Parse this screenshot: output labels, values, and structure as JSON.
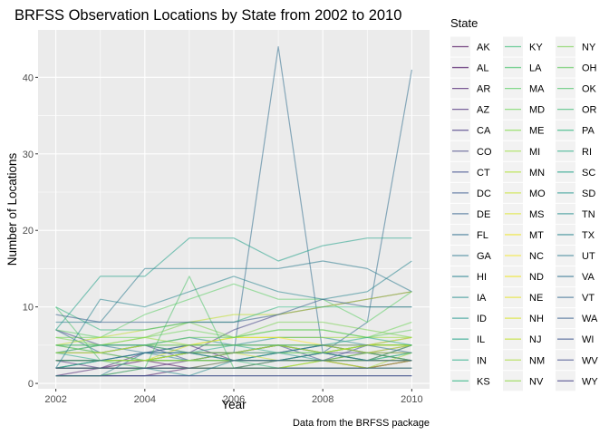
{
  "chart_data": {
    "type": "line",
    "title": "BRFSS Observation Locations by State from 2002 to 2010",
    "xlabel": "Year",
    "ylabel": "Number of Locations",
    "caption": "Data from the BRFSS package",
    "legend_title": "State",
    "legend_position": "right",
    "grid": true,
    "xlim": [
      2001.6,
      2010.4
    ],
    "ylim": [
      -0.7,
      46.2
    ],
    "x": [
      2002,
      2003,
      2004,
      2005,
      2006,
      2007,
      2008,
      2009,
      2010
    ],
    "x_ticks": [
      2002,
      2004,
      2006,
      2008,
      2010
    ],
    "y_ticks": [
      0,
      10,
      20,
      30,
      40
    ],
    "series": [
      {
        "name": "AK",
        "color": "#440154",
        "values": [
          2,
          2,
          3,
          2,
          2,
          3,
          3,
          2,
          3
        ]
      },
      {
        "name": "AL",
        "color": "#470E61",
        "values": [
          1,
          1,
          1,
          2,
          2,
          2,
          2,
          2,
          3
        ]
      },
      {
        "name": "AR",
        "color": "#481B6D",
        "values": [
          1,
          2,
          2,
          3,
          3,
          3,
          4,
          3,
          5
        ]
      },
      {
        "name": "AZ",
        "color": "#472777",
        "values": [
          3,
          2,
          4,
          5,
          3,
          4,
          5,
          4,
          3
        ]
      },
      {
        "name": "CA",
        "color": "#45347F",
        "values": [
          2,
          3,
          3,
          4,
          4,
          5,
          4,
          4,
          4
        ]
      },
      {
        "name": "CO",
        "color": "#414185",
        "values": [
          7,
          5,
          5,
          4,
          7,
          9,
          10,
          11,
          12
        ]
      },
      {
        "name": "CT",
        "color": "#3C4C8A",
        "values": [
          4,
          4,
          5,
          3,
          4,
          5,
          3,
          5,
          5
        ]
      },
      {
        "name": "DC",
        "color": "#38588C",
        "values": [
          1,
          1,
          1,
          1,
          1,
          1,
          1,
          1,
          1
        ]
      },
      {
        "name": "DE",
        "color": "#33638D",
        "values": [
          3,
          3,
          3,
          3,
          3,
          3,
          3,
          3,
          3
        ]
      },
      {
        "name": "FL",
        "color": "#2F6D8E",
        "values": [
          7,
          4,
          3,
          3,
          4,
          44,
          4,
          8,
          41
        ]
      },
      {
        "name": "GA",
        "color": "#2A788E",
        "values": [
          4,
          5,
          4,
          5,
          5,
          5,
          5,
          4,
          5
        ]
      },
      {
        "name": "HI",
        "color": "#26828E",
        "values": [
          1,
          1,
          4,
          3,
          4,
          5,
          4,
          5,
          5
        ]
      },
      {
        "name": "IA",
        "color": "#238C8D",
        "values": [
          5,
          4,
          5,
          6,
          5,
          6,
          6,
          5,
          6
        ]
      },
      {
        "name": "ID",
        "color": "#1F968B",
        "values": [
          2,
          3,
          3,
          3,
          3,
          4,
          3,
          3,
          4
        ]
      },
      {
        "name": "IL",
        "color": "#1FA188",
        "values": [
          3,
          3,
          3,
          4,
          3,
          4,
          5,
          4,
          3
        ]
      },
      {
        "name": "IN",
        "color": "#22AB85",
        "values": [
          4,
          3,
          4,
          4,
          5,
          4,
          4,
          5,
          5
        ]
      },
      {
        "name": "KS",
        "color": "#2BB47F",
        "values": [
          2,
          3,
          3,
          3,
          3,
          3,
          4,
          3,
          3
        ]
      },
      {
        "name": "KY",
        "color": "#38BE76",
        "values": [
          3,
          3,
          3,
          4,
          3,
          2,
          3,
          3,
          3
        ]
      },
      {
        "name": "LA",
        "color": "#48C56D",
        "values": [
          4,
          4,
          5,
          4,
          4,
          5,
          4,
          5,
          5
        ]
      },
      {
        "name": "MA",
        "color": "#5ACE62",
        "values": [
          7,
          6,
          9,
          11,
          13,
          11,
          11,
          8,
          12
        ]
      },
      {
        "name": "MD",
        "color": "#6DD557",
        "values": [
          6,
          6,
          6,
          7,
          6,
          7,
          7,
          6,
          8
        ]
      },
      {
        "name": "ME",
        "color": "#82DB4A",
        "values": [
          5,
          4,
          3,
          4,
          4,
          4,
          4,
          5,
          5
        ]
      },
      {
        "name": "MI",
        "color": "#9ADE3C",
        "values": [
          5,
          5,
          6,
          5,
          6,
          6,
          6,
          6,
          6
        ]
      },
      {
        "name": "MN",
        "color": "#B0E133",
        "values": [
          3,
          3,
          3,
          3,
          3,
          3,
          3,
          4,
          4
        ]
      },
      {
        "name": "MO",
        "color": "#C7E32B",
        "values": [
          3,
          3,
          3,
          3,
          4,
          3,
          3,
          3,
          3
        ]
      },
      {
        "name": "MS",
        "color": "#DEE527",
        "values": [
          2,
          2,
          2,
          2,
          2,
          2,
          3,
          2,
          3
        ]
      },
      {
        "name": "MT",
        "color": "#EFE620",
        "values": [
          2,
          2,
          2,
          2,
          3,
          3,
          3,
          3,
          3
        ]
      },
      {
        "name": "NC",
        "color": "#F5E71F",
        "values": [
          4,
          4,
          5,
          5,
          6,
          6,
          5,
          5,
          6
        ]
      },
      {
        "name": "ND",
        "color": "#F0E41E",
        "values": [
          3,
          3,
          3,
          3,
          3,
          3,
          3,
          4,
          3
        ]
      },
      {
        "name": "NE",
        "color": "#E4E319",
        "values": [
          3,
          3,
          3,
          4,
          4,
          5,
          5,
          4,
          5
        ]
      },
      {
        "name": "NH",
        "color": "#D8E219",
        "values": [
          3,
          3,
          3,
          5,
          5,
          5,
          4,
          5,
          5
        ]
      },
      {
        "name": "NJ",
        "color": "#BEDF26",
        "values": [
          5,
          6,
          7,
          8,
          9,
          9,
          10,
          11,
          12
        ]
      },
      {
        "name": "NM",
        "color": "#A6DB35",
        "values": [
          1,
          1,
          2,
          2,
          2,
          2,
          3,
          2,
          4
        ]
      },
      {
        "name": "NV",
        "color": "#8FD744",
        "values": [
          2,
          2,
          2,
          2,
          2,
          2,
          2,
          2,
          2
        ]
      },
      {
        "name": "NY",
        "color": "#79D151",
        "values": [
          6,
          5,
          6,
          8,
          6,
          8,
          8,
          7,
          6
        ]
      },
      {
        "name": "OH",
        "color": "#63CB5F",
        "values": [
          4,
          5,
          5,
          6,
          6,
          7,
          7,
          6,
          7
        ]
      },
      {
        "name": "OK",
        "color": "#4FC369",
        "values": [
          10,
          3,
          2,
          14,
          2,
          3,
          3,
          3,
          5
        ]
      },
      {
        "name": "OR",
        "color": "#3DBC74",
        "values": [
          3,
          3,
          3,
          3,
          3,
          3,
          4,
          3,
          4
        ]
      },
      {
        "name": "PA",
        "color": "#2EB37C",
        "values": [
          10,
          7,
          7,
          8,
          8,
          10,
          10,
          10,
          10
        ]
      },
      {
        "name": "RI",
        "color": "#24AA83",
        "values": [
          5,
          5,
          5,
          5,
          5,
          5,
          5,
          6,
          5
        ]
      },
      {
        "name": "SC",
        "color": "#1FA088",
        "values": [
          7,
          14,
          14,
          19,
          19,
          16,
          18,
          19,
          19
        ]
      },
      {
        "name": "SD",
        "color": "#1F958B",
        "values": [
          2,
          2,
          2,
          2,
          2,
          2,
          2,
          2,
          2
        ]
      },
      {
        "name": "TN",
        "color": "#228B8D",
        "values": [
          1,
          1,
          2,
          1,
          3,
          3,
          3,
          4,
          3
        ]
      },
      {
        "name": "TX",
        "color": "#25838E",
        "values": [
          2,
          11,
          10,
          12,
          14,
          12,
          11,
          12,
          16
        ]
      },
      {
        "name": "UT",
        "color": "#297A8E",
        "values": [
          8,
          8,
          15,
          15,
          15,
          15,
          16,
          15,
          12
        ]
      },
      {
        "name": "VA",
        "color": "#2D718E",
        "values": [
          3,
          3,
          4,
          4,
          4,
          4,
          5,
          5,
          4
        ]
      },
      {
        "name": "VT",
        "color": "#31688E",
        "values": [
          3,
          3,
          4,
          4,
          3,
          3,
          4,
          3,
          3
        ]
      },
      {
        "name": "WA",
        "color": "#355F8D",
        "values": [
          9,
          8,
          8,
          8,
          8,
          9,
          11,
          10,
          10
        ]
      },
      {
        "name": "WI",
        "color": "#3A548C",
        "values": [
          2,
          2,
          2,
          2,
          3,
          3,
          3,
          3,
          3
        ]
      },
      {
        "name": "WV",
        "color": "#3E4A89",
        "values": [
          1,
          1,
          1,
          1,
          1,
          1,
          1,
          1,
          1
        ]
      },
      {
        "name": "WY",
        "color": "#423F85",
        "values": [
          2,
          2,
          2,
          2,
          2,
          2,
          2,
          2,
          2
        ]
      }
    ]
  }
}
